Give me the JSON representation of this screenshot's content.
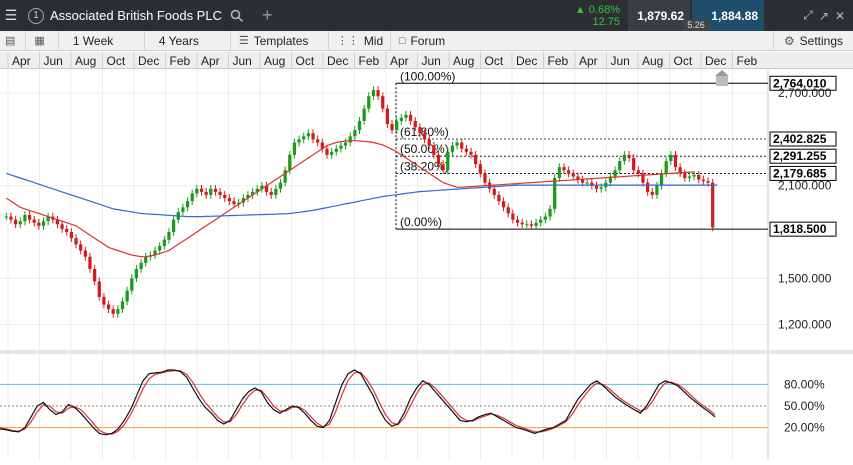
{
  "header": {
    "tab_number": "1",
    "instrument": "Associated British Foods PLC",
    "change_pct": "0.68%",
    "change_abs": "12.75",
    "bid": "1,879.62",
    "ask": "1,884.88",
    "spread": "5.26"
  },
  "toolbar": {
    "period": "1 Week",
    "range": "4 Years",
    "templates": "Templates",
    "price_type": "Mid",
    "forum": "Forum",
    "settings": "Settings"
  },
  "colors": {
    "up": "#1a9b1a",
    "down": "#d11c1c",
    "ma_red": "#e03030",
    "ma_blue": "#2f6bd6",
    "stoch_upper": "#5bc0de",
    "stoch_lower": "#f0a040"
  },
  "chart_data": {
    "type": "candlestick",
    "x_ticks": [
      "Apr",
      "Jun",
      "Aug",
      "Oct",
      "Dec",
      "Feb",
      "Apr",
      "Jun",
      "Aug",
      "Oct",
      "Dec",
      "Feb",
      "Apr",
      "Jun",
      "Aug",
      "Oct",
      "Dec",
      "Feb",
      "Apr",
      "Jun",
      "Aug",
      "Oct",
      "Dec",
      "Feb"
    ],
    "price_ticks": [
      "2,700.000",
      "2,100.000",
      "1,500.000",
      "1,200.000"
    ],
    "price_tick_values": [
      2700,
      2100,
      1500,
      1200
    ],
    "ylim": [
      1100,
      2850
    ],
    "fib_levels": [
      {
        "label": "(100.00%)",
        "value": 2764.01,
        "tag": "2,764.010"
      },
      {
        "label": "(61.80%)",
        "value": 2402.825,
        "tag": "2,402.825"
      },
      {
        "label": "(50.00%)",
        "value": 2291.255,
        "tag": "2,291.255"
      },
      {
        "label": "(38.20%)",
        "value": 2179.685,
        "tag": "2,179.685"
      },
      {
        "label": "(0.00%)",
        "value": 1818.5,
        "tag": "1,818.500"
      }
    ],
    "close_series": [
      1900,
      1880,
      1850,
      1870,
      1910,
      1880,
      1860,
      1840,
      1870,
      1900,
      1880,
      1850,
      1820,
      1800,
      1760,
      1720,
      1680,
      1640,
      1560,
      1480,
      1380,
      1330,
      1300,
      1270,
      1300,
      1350,
      1420,
      1500,
      1560,
      1600,
      1640,
      1650,
      1680,
      1710,
      1750,
      1800,
      1880,
      1930,
      1960,
      2000,
      2050,
      2080,
      2060,
      2040,
      2080,
      2060,
      2040,
      2020,
      2000,
      1980,
      1990,
      2020,
      2040,
      2060,
      2080,
      2100,
      2060,
      2040,
      2080,
      2120,
      2200,
      2300,
      2380,
      2400,
      2420,
      2440,
      2400,
      2380,
      2340,
      2300,
      2320,
      2340,
      2360,
      2380,
      2420,
      2460,
      2520,
      2600,
      2680,
      2720,
      2680,
      2600,
      2500,
      2460,
      2520,
      2540,
      2560,
      2520,
      2480,
      2440,
      2400,
      2360,
      2300,
      2240,
      2200,
      2320,
      2360,
      2380,
      2340,
      2320,
      2300,
      2240,
      2180,
      2120,
      2080,
      2040,
      2000,
      1960,
      1920,
      1880,
      1860,
      1850,
      1850,
      1840,
      1860,
      1880,
      1900,
      1950,
      2150,
      2220,
      2200,
      2180,
      2160,
      2140,
      2120,
      2120,
      2100,
      2080,
      2090,
      2120,
      2160,
      2200,
      2260,
      2300,
      2280,
      2200,
      2180,
      2120,
      2060,
      2040,
      2100,
      2180,
      2260,
      2300,
      2220,
      2180,
      2150,
      2160,
      2170,
      2140,
      2130,
      2120,
      1830
    ],
    "ma_red": [
      2020,
      2000,
      1980,
      1960,
      1950,
      1940,
      1930,
      1920,
      1910,
      1900,
      1890,
      1880,
      1870,
      1860,
      1850,
      1840,
      1820,
      1800,
      1780,
      1760,
      1740,
      1720,
      1700,
      1690,
      1680,
      1670,
      1660,
      1650,
      1645,
      1640,
      1640,
      1645,
      1650,
      1660,
      1670,
      1680,
      1700,
      1720,
      1740,
      1760,
      1780,
      1800,
      1820,
      1840,
      1860,
      1880,
      1900,
      1920,
      1940,
      1960,
      1980,
      2000,
      2020,
      2040,
      2060,
      2080,
      2100,
      2120,
      2140,
      2160,
      2180,
      2200,
      2220,
      2240,
      2260,
      2280,
      2300,
      2320,
      2340,
      2360,
      2370,
      2380,
      2385,
      2390,
      2392,
      2392,
      2390,
      2388,
      2384,
      2380,
      2372,
      2364,
      2350,
      2336,
      2320,
      2300,
      2280,
      2260,
      2240,
      2220,
      2200,
      2180,
      2160,
      2140,
      2120,
      2110,
      2100,
      2090,
      2090,
      2092,
      2094,
      2096,
      2098,
      2100,
      2102,
      2104,
      2106,
      2108,
      2110,
      2112,
      2114,
      2116,
      2118,
      2120,
      2122,
      2124,
      2126,
      2128,
      2130,
      2132,
      2134,
      2136,
      2138,
      2140,
      2142,
      2144,
      2146,
      2148,
      2150,
      2152,
      2154,
      2156,
      2158,
      2160,
      2162,
      2164,
      2166,
      2168,
      2170,
      2172,
      2174,
      2176,
      2178,
      2180,
      2182,
      2184,
      2186,
      2188,
      2190
    ],
    "ma_blue": [
      2180,
      2170,
      2160,
      2150,
      2140,
      2130,
      2120,
      2110,
      2100,
      2090,
      2080,
      2070,
      2060,
      2050,
      2040,
      2030,
      2020,
      2010,
      2000,
      1990,
      1980,
      1970,
      1960,
      1950,
      1945,
      1940,
      1935,
      1930,
      1925,
      1920,
      1918,
      1916,
      1914,
      1912,
      1910,
      1908,
      1906,
      1904,
      1902,
      1900,
      1900,
      1900,
      1900,
      1901,
      1902,
      1903,
      1904,
      1905,
      1906,
      1907,
      1908,
      1909,
      1910,
      1911,
      1912,
      1913,
      1914,
      1915,
      1916,
      1917,
      1918,
      1920,
      1924,
      1928,
      1932,
      1936,
      1940,
      1946,
      1952,
      1958,
      1964,
      1970,
      1976,
      1982,
      1988,
      1994,
      2000,
      2006,
      2012,
      2018,
      2024,
      2030,
      2034,
      2038,
      2042,
      2046,
      2050,
      2054,
      2058,
      2062,
      2064,
      2066,
      2068,
      2070,
      2072,
      2074,
      2076,
      2078,
      2080,
      2082,
      2084,
      2086,
      2088,
      2090,
      2092,
      2094,
      2096,
      2098,
      2100,
      2102,
      2104,
      2104,
      2104,
      2104,
      2104,
      2104,
      2104,
      2104,
      2104,
      2104,
      2104,
      2104,
      2104,
      2104,
      2104,
      2104,
      2104,
      2104,
      2104,
      2104,
      2104,
      2104,
      2104,
      2104,
      2104,
      2104,
      2104,
      2104,
      2104,
      2104,
      2104,
      2104,
      2104,
      2104,
      2104,
      2104,
      2104,
      2104,
      2104,
      2104,
      2104,
      2104,
      2104,
      2104
    ],
    "stoch_ticks": [
      "80.00%",
      "50.00%",
      "20.00%"
    ],
    "stoch_levels": [
      80,
      50,
      20
    ],
    "stoch_k": [
      18,
      17,
      15,
      14,
      20,
      35,
      50,
      55,
      45,
      38,
      42,
      52,
      48,
      40,
      30,
      20,
      12,
      10,
      12,
      18,
      30,
      45,
      65,
      85,
      95,
      96,
      97,
      100,
      100,
      98,
      90,
      75,
      60,
      48,
      40,
      30,
      25,
      30,
      45,
      60,
      70,
      75,
      70,
      55,
      45,
      40,
      45,
      50,
      48,
      40,
      30,
      22,
      20,
      30,
      55,
      80,
      95,
      100,
      95,
      80,
      65,
      45,
      30,
      22,
      25,
      40,
      60,
      75,
      85,
      80,
      70,
      60,
      50,
      40,
      30,
      28,
      30,
      35,
      38,
      40,
      35,
      30,
      25,
      20,
      18,
      15,
      12,
      15,
      18,
      20,
      25,
      30,
      45,
      60,
      70,
      80,
      85,
      78,
      70,
      62,
      56,
      50,
      45,
      40,
      50,
      65,
      80,
      85,
      82,
      78,
      70,
      62,
      55,
      48,
      42,
      35
    ],
    "stoch_d": [
      20,
      18,
      16,
      15,
      18,
      28,
      42,
      52,
      50,
      42,
      40,
      47,
      49,
      45,
      36,
      26,
      16,
      12,
      11,
      15,
      24,
      38,
      55,
      74,
      88,
      94,
      96,
      98,
      99,
      99,
      94,
      83,
      68,
      55,
      45,
      35,
      28,
      28,
      38,
      52,
      64,
      72,
      72,
      62,
      50,
      43,
      43,
      48,
      49,
      44,
      35,
      26,
      21,
      25,
      42,
      66,
      86,
      96,
      97,
      87,
      73,
      55,
      38,
      27,
      24,
      33,
      50,
      67,
      80,
      82,
      75,
      65,
      55,
      45,
      35,
      30,
      29,
      33,
      36,
      39,
      37,
      33,
      28,
      23,
      20,
      17,
      14,
      14,
      16,
      19,
      23,
      28,
      38,
      52,
      64,
      75,
      82,
      80,
      74,
      66,
      59,
      53,
      48,
      43,
      46,
      57,
      72,
      82,
      83,
      80,
      74,
      66,
      58,
      51,
      45,
      38
    ]
  }
}
